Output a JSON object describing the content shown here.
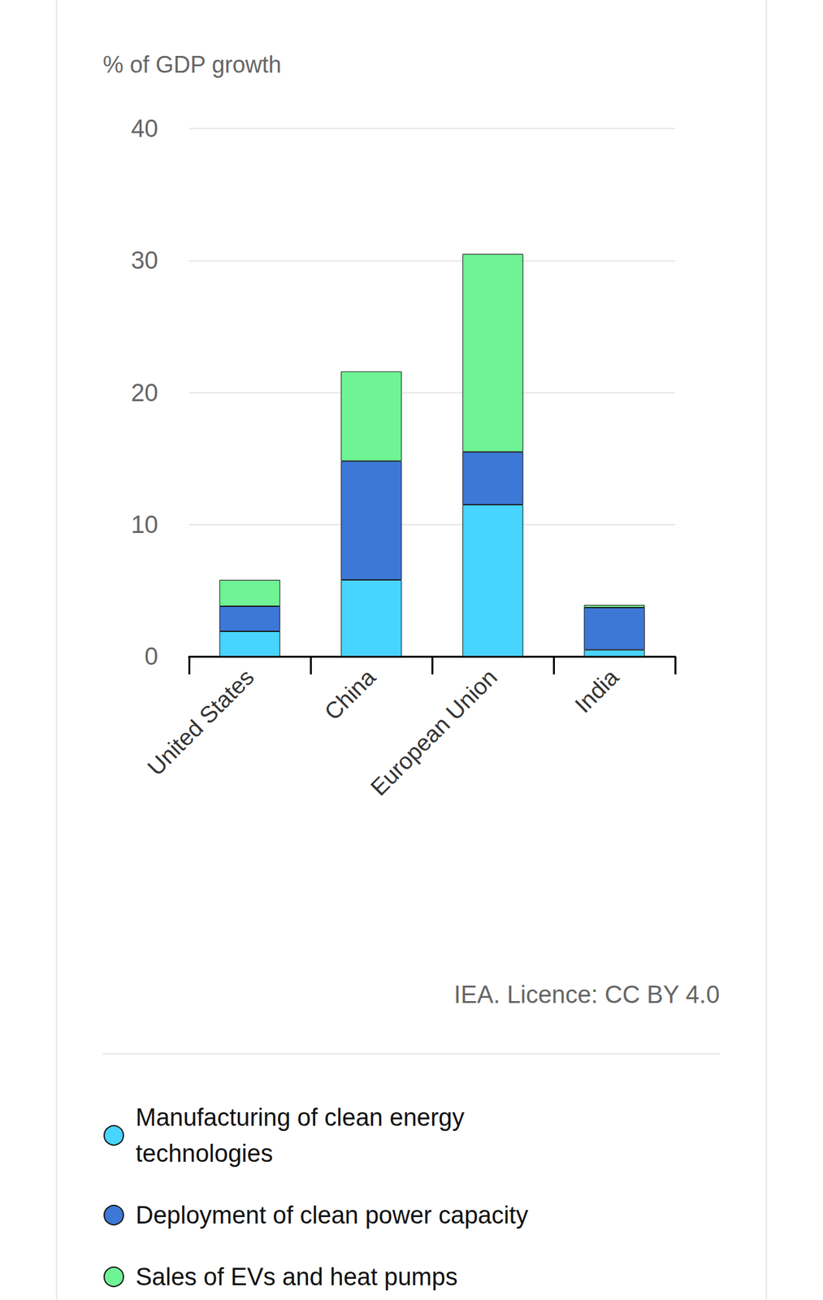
{
  "chart_data": {
    "type": "bar",
    "ylabel": "% of GDP growth",
    "categories": [
      "United States",
      "China",
      "European Union",
      "India"
    ],
    "series": [
      {
        "name": "Manufacturing of clean energy technologies",
        "color": "#47d4ff",
        "values": [
          1.9,
          5.8,
          11.5,
          0.5
        ]
      },
      {
        "name": "Deployment of clean power capacity",
        "color": "#3d78d6",
        "values": [
          1.9,
          9.0,
          4.0,
          3.2
        ]
      },
      {
        "name": "Sales of EVs and heat pumps",
        "color": "#6ef494",
        "values": [
          2.0,
          6.8,
          15.0,
          0.2
        ]
      }
    ],
    "ylim": [
      0,
      40
    ],
    "yticks": [
      0,
      10,
      20,
      30,
      40
    ],
    "stacked": true,
    "grid": true,
    "legend": "bottom-left",
    "annotations": [
      "IEA. Licence: CC BY 4.0"
    ]
  }
}
